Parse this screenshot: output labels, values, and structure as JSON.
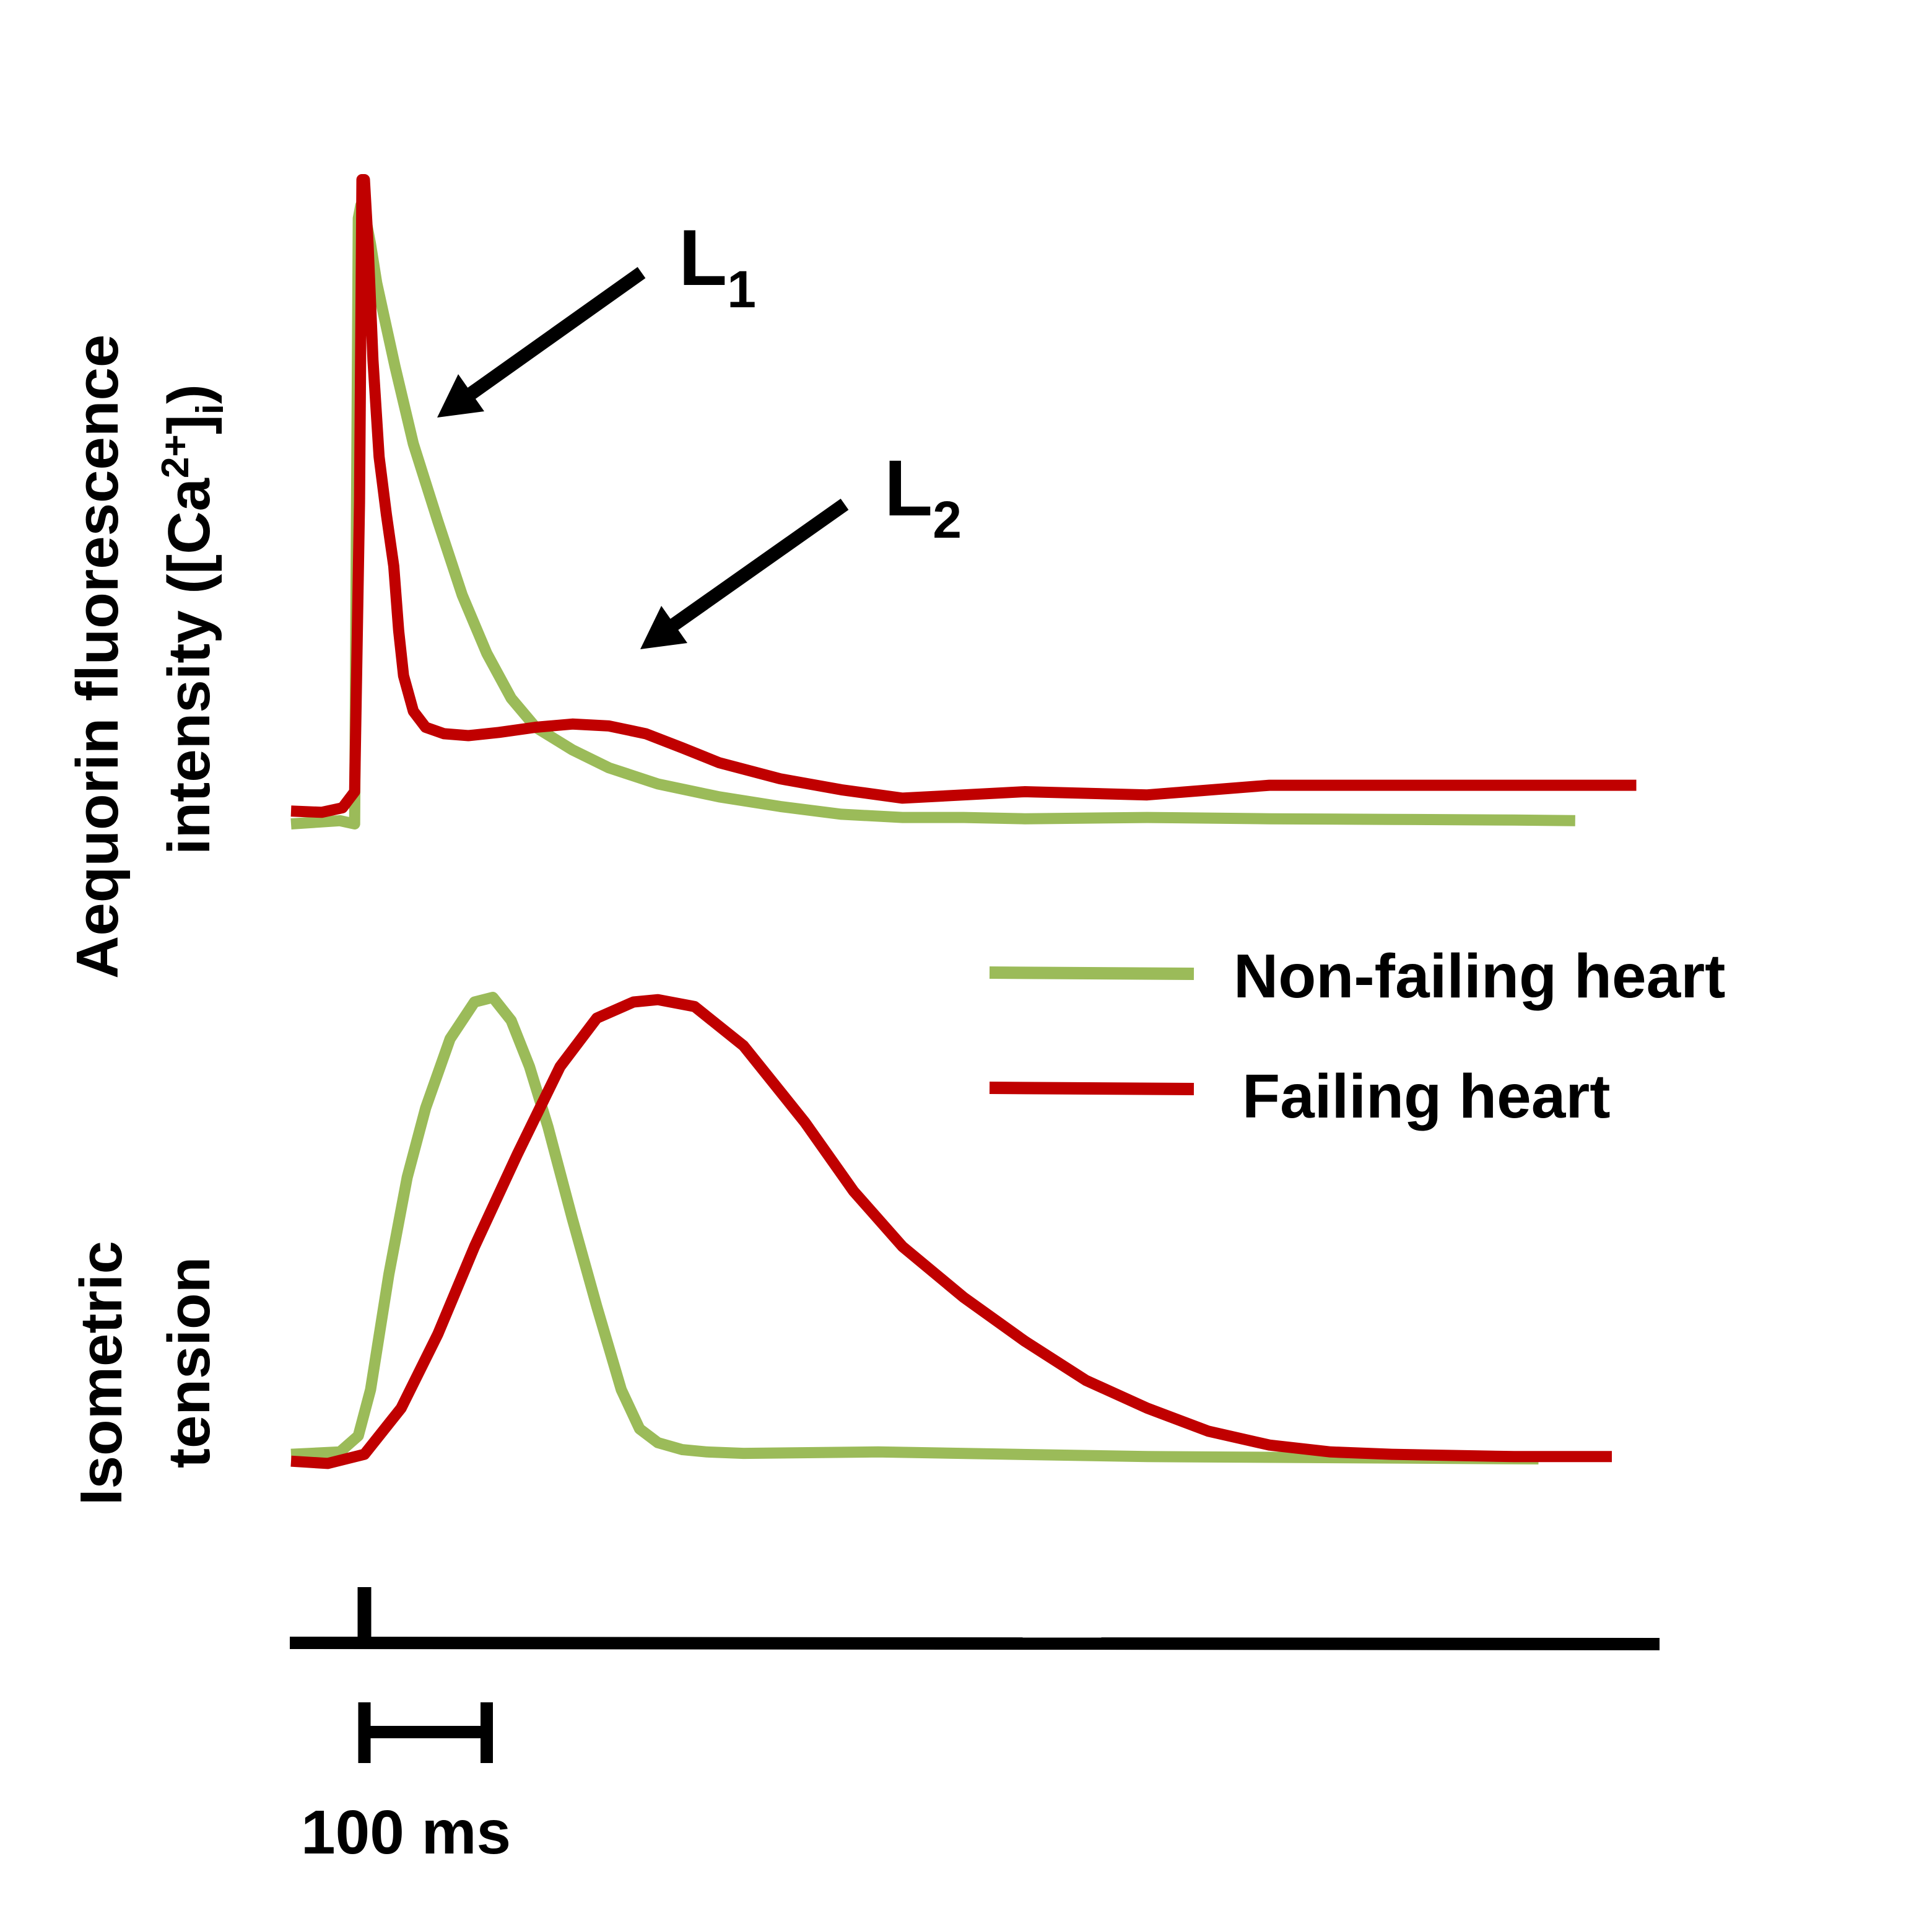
{
  "chart_data": [
    {
      "type": "line",
      "ylabel": {
        "line1": "Aequorin fluorescence",
        "line2_prefix": "intensity ([Ca",
        "line2_sup": "2+",
        "line2_mid": "]",
        "line2_sub": "i",
        "line2_suffix": ")"
      },
      "xlim": [
        0,
        1100
      ],
      "ylim": [
        0,
        1
      ],
      "series": [
        {
          "name": "Non-failing heart",
          "color": "#9bbb59",
          "x": [
            0,
            40,
            52,
            55,
            57,
            60,
            65,
            70,
            85,
            100,
            120,
            140,
            160,
            180,
            200,
            230,
            260,
            300,
            350,
            400,
            450,
            500,
            550,
            600,
            700,
            800,
            900,
            1000,
            1050
          ],
          "y": [
            0.0,
            0.005,
            0.0,
            0.94,
            0.96,
            0.95,
            0.9,
            0.84,
            0.71,
            0.59,
            0.47,
            0.355,
            0.265,
            0.195,
            0.15,
            0.115,
            0.087,
            0.062,
            0.042,
            0.027,
            0.015,
            0.01,
            0.01,
            0.008,
            0.01,
            0.008,
            0.007,
            0.006,
            0.005
          ]
        },
        {
          "name": "Failing heart",
          "color": "#c00000",
          "x": [
            0,
            25,
            42,
            52,
            56,
            58,
            60,
            63,
            67,
            72,
            78,
            84,
            88,
            92,
            100,
            110,
            125,
            145,
            170,
            200,
            230,
            260,
            290,
            320,
            350,
            400,
            450,
            500,
            600,
            700,
            800,
            900,
            1000,
            1100
          ],
          "y": [
            0.02,
            0.018,
            0.025,
            0.05,
            0.5,
            1.0,
            1.0,
            0.9,
            0.72,
            0.57,
            0.48,
            0.4,
            0.3,
            0.23,
            0.175,
            0.15,
            0.14,
            0.137,
            0.142,
            0.15,
            0.155,
            0.152,
            0.14,
            0.118,
            0.095,
            0.07,
            0.053,
            0.04,
            0.05,
            0.045,
            0.06,
            0.06,
            0.06,
            0.06
          ]
        }
      ]
    },
    {
      "type": "line",
      "ylabel": {
        "line1": "Isometric",
        "line2": "tension"
      },
      "xlim": [
        0,
        1100
      ],
      "ylim": [
        0,
        1
      ],
      "series": [
        {
          "name": "Non-failing heart",
          "color": "#9bbb59",
          "x": [
            0,
            40,
            55,
            65,
            80,
            95,
            110,
            130,
            150,
            165,
            180,
            195,
            210,
            230,
            250,
            270,
            285,
            300,
            320,
            340,
            370,
            480,
            700,
            1020
          ],
          "y": [
            0.01,
            0.015,
            0.05,
            0.15,
            0.4,
            0.61,
            0.76,
            0.91,
            0.99,
            1.0,
            0.95,
            0.85,
            0.72,
            0.52,
            0.33,
            0.15,
            0.065,
            0.035,
            0.02,
            0.015,
            0.012,
            0.015,
            0.005,
            0.0
          ]
        },
        {
          "name": "Failing heart",
          "color": "#c00000",
          "x": [
            0,
            30,
            60,
            90,
            120,
            150,
            185,
            220,
            250,
            280,
            300,
            330,
            370,
            420,
            460,
            500,
            550,
            600,
            650,
            700,
            750,
            800,
            850,
            900,
            1000,
            1080
          ],
          "y": [
            -0.005,
            -0.01,
            0.01,
            0.11,
            0.27,
            0.46,
            0.66,
            0.85,
            0.955,
            0.99,
            0.995,
            0.98,
            0.895,
            0.73,
            0.58,
            0.46,
            0.35,
            0.255,
            0.17,
            0.11,
            0.06,
            0.03,
            0.015,
            0.01,
            0.005,
            0.005
          ]
        }
      ]
    }
  ],
  "annotations": {
    "l1": {
      "letter": "L",
      "sub": "1"
    },
    "l2": {
      "letter": "L",
      "sub": "2"
    }
  },
  "legend": {
    "position": "right",
    "items": [
      {
        "label": "Non-failing heart",
        "color": "#9bbb59"
      },
      {
        "label": "Failing heart",
        "color": "#c00000"
      }
    ]
  },
  "stimulus": {
    "onset_ms": 60
  },
  "scale_bar": {
    "duration_ms": 100,
    "label": "100 ms"
  }
}
